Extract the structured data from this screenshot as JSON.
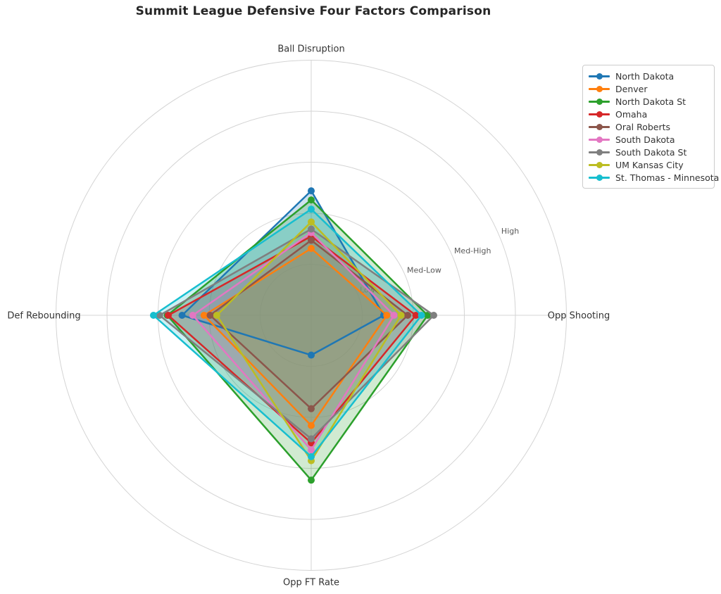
{
  "title": "Summit League Defensive Four Factors Comparison",
  "chart_data": {
    "type": "radar",
    "axes": [
      "Ball Disruption",
      "Opp Shooting",
      "Opp FT Rate",
      "Def Rebounding"
    ],
    "ring_labels": [
      "Low",
      "Med-Low",
      "Med-High",
      "High"
    ],
    "ring_values": [
      1,
      2,
      3,
      4,
      5
    ],
    "rlim": [
      0,
      5
    ],
    "rlabel_angle_deg": 22.5,
    "grid": true,
    "legend_position": "upper right",
    "series": [
      {
        "name": "North Dakota",
        "color": "#1f77b4",
        "values": [
          2.44,
          1.42,
          0.78,
          2.53
        ]
      },
      {
        "name": "Denver",
        "color": "#ff7f0e",
        "values": [
          1.31,
          1.48,
          2.16,
          2.1
        ]
      },
      {
        "name": "North Dakota St",
        "color": "#2ca02c",
        "values": [
          2.26,
          2.28,
          3.23,
          2.82
        ]
      },
      {
        "name": "Omaha",
        "color": "#d62728",
        "values": [
          1.55,
          2.05,
          2.5,
          2.8
        ]
      },
      {
        "name": "Oral Roberts",
        "color": "#8c564b",
        "values": [
          1.47,
          1.89,
          1.83,
          1.98
        ]
      },
      {
        "name": "South Dakota",
        "color": "#e377c2",
        "values": [
          1.62,
          1.62,
          2.64,
          2.32
        ]
      },
      {
        "name": "South Dakota St",
        "color": "#7f7f7f",
        "values": [
          1.69,
          2.4,
          2.42,
          2.97
        ]
      },
      {
        "name": "UM Kansas City",
        "color": "#bcbd22",
        "values": [
          1.83,
          1.76,
          2.85,
          1.85
        ]
      },
      {
        "name": "St. Thomas - Minnesota",
        "color": "#17becf",
        "values": [
          2.08,
          2.16,
          2.77,
          3.09
        ]
      }
    ],
    "style": {
      "grid_color": "#d4d4d4",
      "axis_label_color": "#333333",
      "tick_label_color": "#595959",
      "fill_alpha": 0.22,
      "line_width": 2.5,
      "marker_radius": 5
    }
  }
}
